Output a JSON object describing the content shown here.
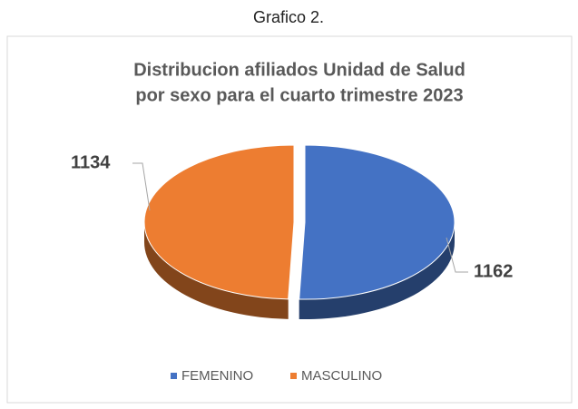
{
  "caption": "Grafico 2.",
  "chart_data": {
    "type": "pie3d",
    "title_lines": [
      "Distribucion  afiliados Unidad de Salud",
      "por sexo para el cuarto  trimestre 2023"
    ],
    "categories": [
      "FEMENINO",
      "MASCULINO"
    ],
    "values": [
      1162,
      1134
    ],
    "colors": [
      "#4472c4",
      "#ed7d31"
    ],
    "legend": "bottom"
  }
}
